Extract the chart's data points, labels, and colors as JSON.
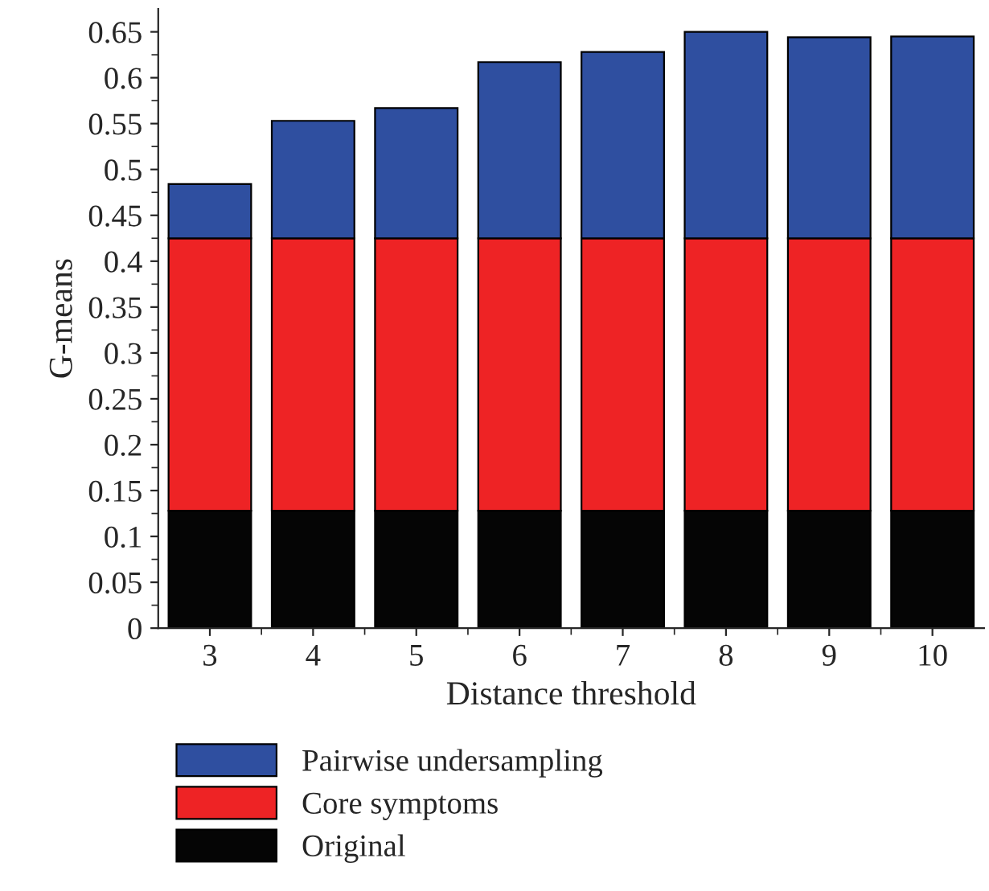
{
  "chart_data": {
    "type": "bar",
    "stacked": true,
    "xlabel": "Distance threshold",
    "ylabel": "G-means",
    "categories": [
      "3",
      "4",
      "5",
      "6",
      "7",
      "8",
      "9",
      "10"
    ],
    "series": [
      {
        "name": "Original",
        "color": "#050505",
        "values": [
          0.128,
          0.128,
          0.128,
          0.128,
          0.128,
          0.128,
          0.128,
          0.128
        ]
      },
      {
        "name": "Core symptoms",
        "color": "#ee2325",
        "values": [
          0.297,
          0.297,
          0.297,
          0.297,
          0.297,
          0.297,
          0.297,
          0.297
        ]
      },
      {
        "name": "Pairwise undersampling",
        "color": "#2f4fa0",
        "values": [
          0.059,
          0.128,
          0.142,
          0.192,
          0.203,
          0.225,
          0.219,
          0.22
        ]
      }
    ],
    "ylim": [
      0,
      0.675
    ],
    "yticks": [
      0,
      {
        "value": 0.05,
        "label": "0.05"
      },
      {
        "value": 0.1,
        "label": "0.1"
      },
      {
        "value": 0.15,
        "label": "0.15"
      },
      {
        "value": 0.2,
        "label": "0.2"
      },
      {
        "value": 0.25,
        "label": "0.25"
      },
      {
        "value": 0.3,
        "label": "0.3"
      },
      {
        "value": 0.35,
        "label": "0.35"
      },
      {
        "value": 0.4,
        "label": "0.4"
      },
      {
        "value": 0.45,
        "label": "0.45"
      },
      {
        "value": 0.5,
        "label": "0.5"
      },
      {
        "value": 0.55,
        "label": "0.55"
      },
      {
        "value": 0.6,
        "label": "0.6"
      },
      {
        "value": 0.65,
        "label": "0.65"
      }
    ],
    "grid": false,
    "legend": "bottom"
  }
}
